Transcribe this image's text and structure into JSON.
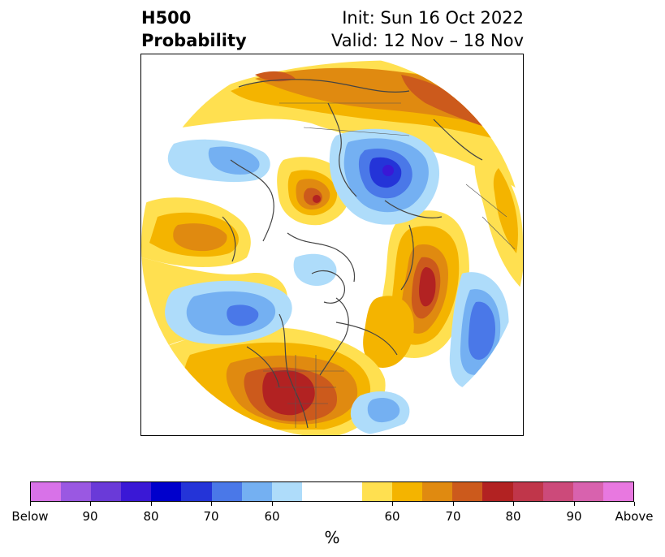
{
  "title": {
    "left_line1": "H500",
    "left_line2": "Probability",
    "init": "Init: Sun 16 Oct 2022",
    "valid": "Valid: 12 Nov – 18 Nov"
  },
  "colorbar": {
    "label": "%",
    "colors": [
      "#d872e8",
      "#9a58e2",
      "#6a3ad8",
      "#3a18d6",
      "#0000cc",
      "#2434d8",
      "#4a78e8",
      "#74b0f2",
      "#aedcfa",
      "#ffffff",
      "#ffe050",
      "#f4b400",
      "#e08a10",
      "#cc5a1c",
      "#b22222",
      "#c0364a",
      "#cc4a7a",
      "#d862ae",
      "#e878e0"
    ],
    "tick_labels": [
      "Below",
      "90",
      "80",
      "70",
      "60",
      "60",
      "70",
      "80",
      "90",
      "Above"
    ]
  },
  "colors": {
    "ocean_bg": "#ffffff",
    "coastline": "#444444",
    "border": "#000000"
  }
}
